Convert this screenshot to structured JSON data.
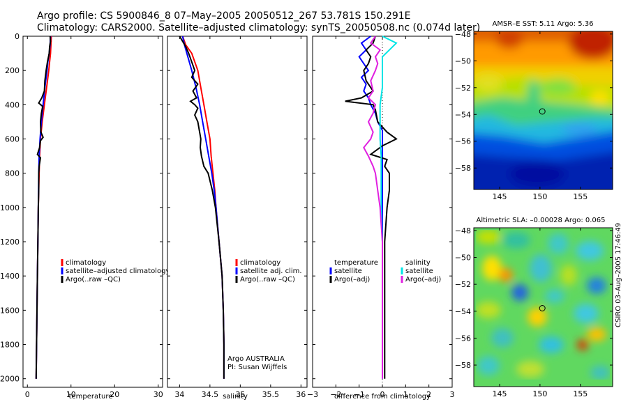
{
  "header": {
    "line1": "Argo profile: CS 5900846_8 07–May–2005 20050512_267 53.781S 150.291E",
    "line2": "Climatology: CARS2000. Satellite–adjusted climatology: synTS_20050508.nc (0.074d later)"
  },
  "side_label": "CSIRO 03–Aug–2005 17:46:49",
  "colors": {
    "red": "#ff0000",
    "blue": "#0000ff",
    "black": "#000000",
    "cyan": "#00e5e5",
    "magenta": "#e020e0"
  },
  "chart_data": [
    {
      "type": "line",
      "panel": "temperature",
      "xlabel": "temperature",
      "xlim": [
        -1,
        31
      ],
      "ylim": [
        2050,
        0
      ],
      "xticks": [
        0,
        10,
        20,
        30
      ],
      "yticks": [
        0,
        200,
        400,
        600,
        800,
        1000,
        1200,
        1400,
        1600,
        1800,
        2000
      ],
      "legend": [
        "climatology",
        "satellite–adjusted climatology",
        "Argo(..raw –QC)"
      ],
      "series": [
        {
          "name": "climatology",
          "color": "red",
          "depth": [
            0,
            50,
            100,
            150,
            200,
            300,
            400,
            500,
            600,
            700,
            800,
            1000,
            1200,
            1400,
            1600,
            1800,
            2000
          ],
          "values": [
            5.5,
            5.4,
            5.3,
            5.1,
            4.9,
            4.4,
            3.9,
            3.4,
            3.0,
            2.8,
            2.7,
            2.5,
            2.4,
            2.3,
            2.2,
            2.1,
            2.0
          ]
        },
        {
          "name": "satellite–adjusted climatology",
          "color": "blue",
          "depth": [
            0,
            50,
            100,
            150,
            200,
            300,
            400,
            500,
            600,
            700,
            800,
            1000,
            1200,
            1400,
            1600,
            1800,
            2000
          ],
          "values": [
            5.3,
            5.2,
            5.0,
            4.7,
            4.5,
            4.0,
            3.6,
            3.2,
            2.9,
            2.7,
            2.6,
            2.5,
            2.4,
            2.3,
            2.2,
            2.1,
            2.0
          ]
        },
        {
          "name": "Argo(..raw –QC)",
          "color": "black",
          "depth": [
            0,
            30,
            60,
            100,
            150,
            200,
            260,
            320,
            360,
            390,
            410,
            450,
            500,
            560,
            590,
            610,
            650,
            690,
            710,
            760,
            800,
            900,
            1000,
            1200,
            1400,
            1600,
            1800,
            2000
          ],
          "values": [
            5.2,
            5.3,
            5.1,
            5.0,
            4.6,
            4.3,
            4.0,
            3.9,
            3.3,
            2.6,
            3.5,
            3.2,
            3.0,
            3.1,
            3.6,
            3.0,
            2.8,
            2.3,
            3.0,
            2.7,
            2.6,
            2.6,
            2.5,
            2.4,
            2.3,
            2.2,
            2.1,
            2.0
          ]
        }
      ]
    },
    {
      "type": "line",
      "panel": "salinity",
      "xlabel": "salinity",
      "xlim": [
        33.8,
        36.1
      ],
      "ylim": [
        2050,
        0
      ],
      "xticks": [
        34,
        34.5,
        35,
        35.5,
        36
      ],
      "legend": [
        "climatology",
        "satellite adj. clim.",
        "Argo(..raw –QC)"
      ],
      "annotations": [
        "Argo AUSTRALIA",
        "PI: Susan Wijffels"
      ],
      "series": [
        {
          "name": "climatology",
          "color": "red",
          "depth": [
            0,
            50,
            100,
            200,
            300,
            400,
            500,
            600,
            700,
            800,
            900,
            1000,
            1200,
            1400,
            1600,
            1800,
            2000
          ],
          "values": [
            34.05,
            34.1,
            34.2,
            34.3,
            34.35,
            34.4,
            34.45,
            34.5,
            34.52,
            34.55,
            34.58,
            34.6,
            34.65,
            34.7,
            34.72,
            34.73,
            34.73
          ]
        },
        {
          "name": "satellite adj. clim.",
          "color": "blue",
          "depth": [
            0,
            50,
            100,
            200,
            300,
            400,
            500,
            600,
            700,
            800,
            900,
            1000,
            1200,
            1400,
            1600,
            1800,
            2000
          ],
          "values": [
            34.05,
            34.08,
            34.12,
            34.2,
            34.27,
            34.33,
            34.38,
            34.43,
            34.48,
            34.53,
            34.57,
            34.6,
            34.65,
            34.7,
            34.72,
            34.73,
            34.73
          ]
        },
        {
          "name": "Argo(..raw –QC)",
          "color": "black",
          "depth": [
            0,
            30,
            60,
            100,
            150,
            200,
            240,
            280,
            320,
            360,
            380,
            400,
            420,
            460,
            500,
            560,
            600,
            650,
            700,
            760,
            800,
            900,
            1000,
            1200,
            1400,
            1600,
            1800,
            2000
          ],
          "values": [
            34.0,
            34.05,
            34.1,
            34.15,
            34.2,
            34.25,
            34.2,
            34.3,
            34.22,
            34.28,
            34.18,
            34.25,
            34.3,
            34.25,
            34.3,
            34.33,
            34.35,
            34.34,
            34.36,
            34.4,
            34.47,
            34.54,
            34.59,
            34.65,
            34.7,
            34.72,
            34.73,
            34.73
          ]
        }
      ]
    },
    {
      "type": "line",
      "panel": "difference",
      "xlabel": "difference from climatology",
      "xlim": [
        -3,
        3
      ],
      "ylim": [
        2050,
        0
      ],
      "xticks": [
        -3,
        -2,
        -1,
        0,
        1,
        2,
        3
      ],
      "legend_left": [
        "temperature",
        "satellite",
        "Argo(–adj)"
      ],
      "legend_right": [
        "salinity",
        "satellite",
        "Argo(–adj)"
      ],
      "series": [
        {
          "name": "temperature satellite",
          "color": "blue",
          "depth": [
            0,
            40,
            80,
            120,
            160,
            200,
            240,
            280,
            320,
            360,
            400,
            450,
            500,
            550,
            600,
            650,
            700,
            800,
            900,
            1000,
            1200,
            1400,
            1600,
            1800,
            2000
          ],
          "values": [
            -0.5,
            -0.9,
            -0.7,
            -1.0,
            -0.8,
            -0.6,
            -0.9,
            -0.7,
            -0.8,
            -0.6,
            -0.5,
            -0.3,
            -0.2,
            0.0,
            0.0,
            0.0,
            0.0,
            0.0,
            0.0,
            0.0,
            0.0,
            0.0,
            0.0,
            0.0,
            0.0
          ]
        },
        {
          "name": "temperature Argo(–adj)",
          "color": "black",
          "depth": [
            0,
            40,
            80,
            120,
            160,
            200,
            260,
            320,
            360,
            380,
            400,
            430,
            500,
            560,
            600,
            640,
            690,
            720,
            760,
            800,
            900,
            1000,
            1200,
            1400,
            1600,
            1800,
            2000
          ],
          "values": [
            -0.3,
            -0.4,
            -0.7,
            -0.5,
            -0.6,
            -0.8,
            -0.7,
            -0.4,
            -0.9,
            -1.6,
            -0.4,
            -0.3,
            -0.2,
            0.2,
            0.6,
            0.0,
            -0.5,
            0.2,
            0.1,
            0.3,
            0.3,
            0.2,
            0.1,
            0.1,
            0.1,
            0.1,
            0.1
          ]
        },
        {
          "name": "salinity satellite",
          "color": "cyan",
          "depth": [
            0,
            40,
            80,
            120,
            160,
            200,
            300,
            400,
            500,
            600,
            700,
            800,
            1000,
            1200,
            1400,
            1600,
            1800,
            2000
          ],
          "values": [
            0.0,
            0.6,
            0.3,
            0.0,
            0.0,
            0.0,
            0.0,
            -0.1,
            -0.1,
            -0.1,
            -0.05,
            -0.05,
            -0.05,
            0.0,
            0.0,
            0.0,
            0.0,
            0.0
          ]
        },
        {
          "name": "salinity Argo(–adj)",
          "color": "magenta",
          "depth": [
            0,
            40,
            80,
            120,
            160,
            200,
            260,
            320,
            360,
            400,
            450,
            500,
            560,
            600,
            650,
            700,
            760,
            800,
            900,
            1000,
            1200,
            1400,
            1600,
            1800,
            2000
          ],
          "values": [
            -0.3,
            -0.5,
            -0.1,
            -0.3,
            -0.2,
            -0.3,
            -0.5,
            -0.4,
            -0.6,
            -0.3,
            -0.4,
            -0.6,
            -0.4,
            -0.5,
            -0.8,
            -0.6,
            -0.4,
            -0.3,
            -0.2,
            -0.1,
            0.0,
            0.0,
            0.0,
            0.0,
            0.0
          ]
        }
      ]
    },
    {
      "type": "heatmap",
      "panel": "sst_map",
      "title": "AMSR–E SST: 5.11 Argo: 5.36",
      "xticks": [
        145,
        150,
        155
      ],
      "yticks": [
        -48,
        -50,
        -52,
        -54,
        -56,
        -58
      ],
      "xlim": [
        141.8,
        159
      ],
      "ylim": [
        -59.6,
        -47.8
      ],
      "marker": {
        "lon": 150.29,
        "lat": -53.78
      }
    },
    {
      "type": "heatmap",
      "panel": "sla_map",
      "title": "Altimetric SLA: –0.00028 Argo: 0.065",
      "xticks": [
        145,
        150,
        155
      ],
      "yticks": [
        -48,
        -50,
        -52,
        -54,
        -56,
        -58
      ],
      "xlim": [
        141.8,
        159
      ],
      "ylim": [
        -59.6,
        -47.8
      ],
      "marker": {
        "lon": 150.29,
        "lat": -53.78
      }
    }
  ]
}
